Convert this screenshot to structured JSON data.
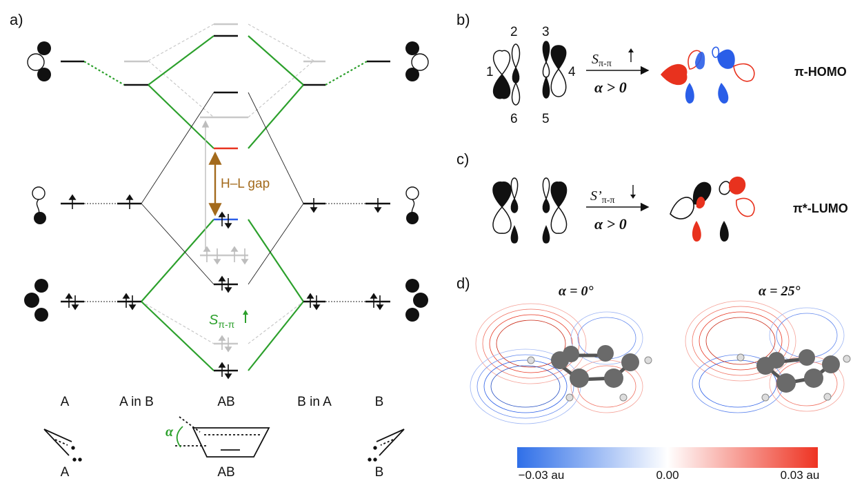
{
  "panels": {
    "a": "a)",
    "b": "b)",
    "c": "c)",
    "d": "d)"
  },
  "panel_a": {
    "columns": [
      "A",
      "A in B",
      "AB",
      "B in A",
      "B"
    ],
    "hl_gap": "H–L gap",
    "s_pi_pi": "S",
    "s_pi_pi_sub": "π-π",
    "alpha": "α",
    "bottom_labels": [
      "A",
      "AB",
      "B"
    ]
  },
  "panel_b": {
    "numbers": [
      "1",
      "2",
      "3",
      "4",
      "5",
      "6"
    ],
    "arrow_top": "S",
    "arrow_top_sub": "π-π",
    "arrow_bottom": "α > 0",
    "result": "π-HOMO"
  },
  "panel_c": {
    "arrow_top": "S’",
    "arrow_top_sub": "π-π",
    "arrow_bottom": "α > 0",
    "result": "π*-LUMO"
  },
  "panel_d": {
    "left_title": "α = 0°",
    "right_title": "α = 25°",
    "colorbar": {
      "min_label": "−0.03 au",
      "mid_label": "0.00",
      "max_label": "0.03 au",
      "low_color": "#2f6fe8",
      "high_color": "#ee3322"
    }
  },
  "colors": {
    "green": "#2ca02c",
    "gray": "#bdbdbd",
    "red": "#e8321e",
    "blue": "#2a5ee8",
    "brown": "#a36a1c"
  }
}
